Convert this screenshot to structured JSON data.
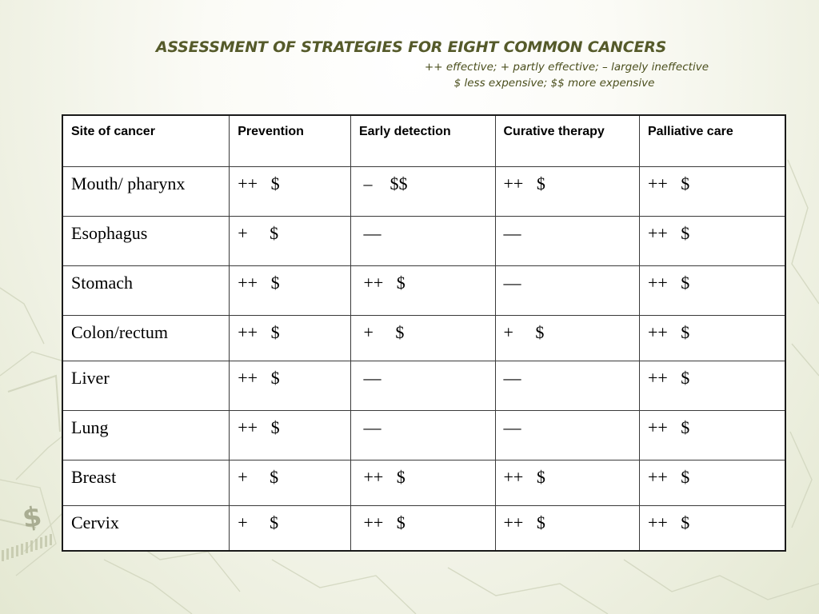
{
  "slide": {
    "title": "ASSESSMENT OF STRATEGIES FOR EIGHT COMMON CANCERS",
    "legend_line1": "++ effective; + partly effective; – largely ineffective",
    "legend_line2": "$ less expensive; $$ more expensive"
  },
  "table": {
    "headers": [
      "Site of cancer",
      "Prevention",
      "Early detection",
      "Curative therapy",
      "Palliative care"
    ],
    "rows": [
      [
        "Mouth/ pharynx",
        "++   $",
        " –    $$",
        "++   $",
        "++   $"
      ],
      [
        "Esophagus",
        "+     $",
        " —",
        "—",
        "++   $"
      ],
      [
        "Stomach",
        "++   $",
        " ++   $",
        "—",
        "++   $"
      ],
      [
        "Colon/rectum",
        "++   $",
        " +     $",
        "+     $",
        "++   $"
      ],
      [
        "Liver",
        "++   $",
        " —",
        "—",
        "++   $"
      ],
      [
        "Lung",
        "++   $",
        " —",
        "—",
        "++   $"
      ],
      [
        "Breast",
        "+     $",
        " ++   $",
        "++   $",
        "++   $"
      ],
      [
        "Cervix",
        "+     $",
        " ++   $",
        "++   $",
        "++   $"
      ]
    ]
  },
  "colors": {
    "title": "#555a2a",
    "legend": "#4a4e1c",
    "background_tint": "#e4e8d2",
    "watermark_dollar": "#a9ad92"
  }
}
